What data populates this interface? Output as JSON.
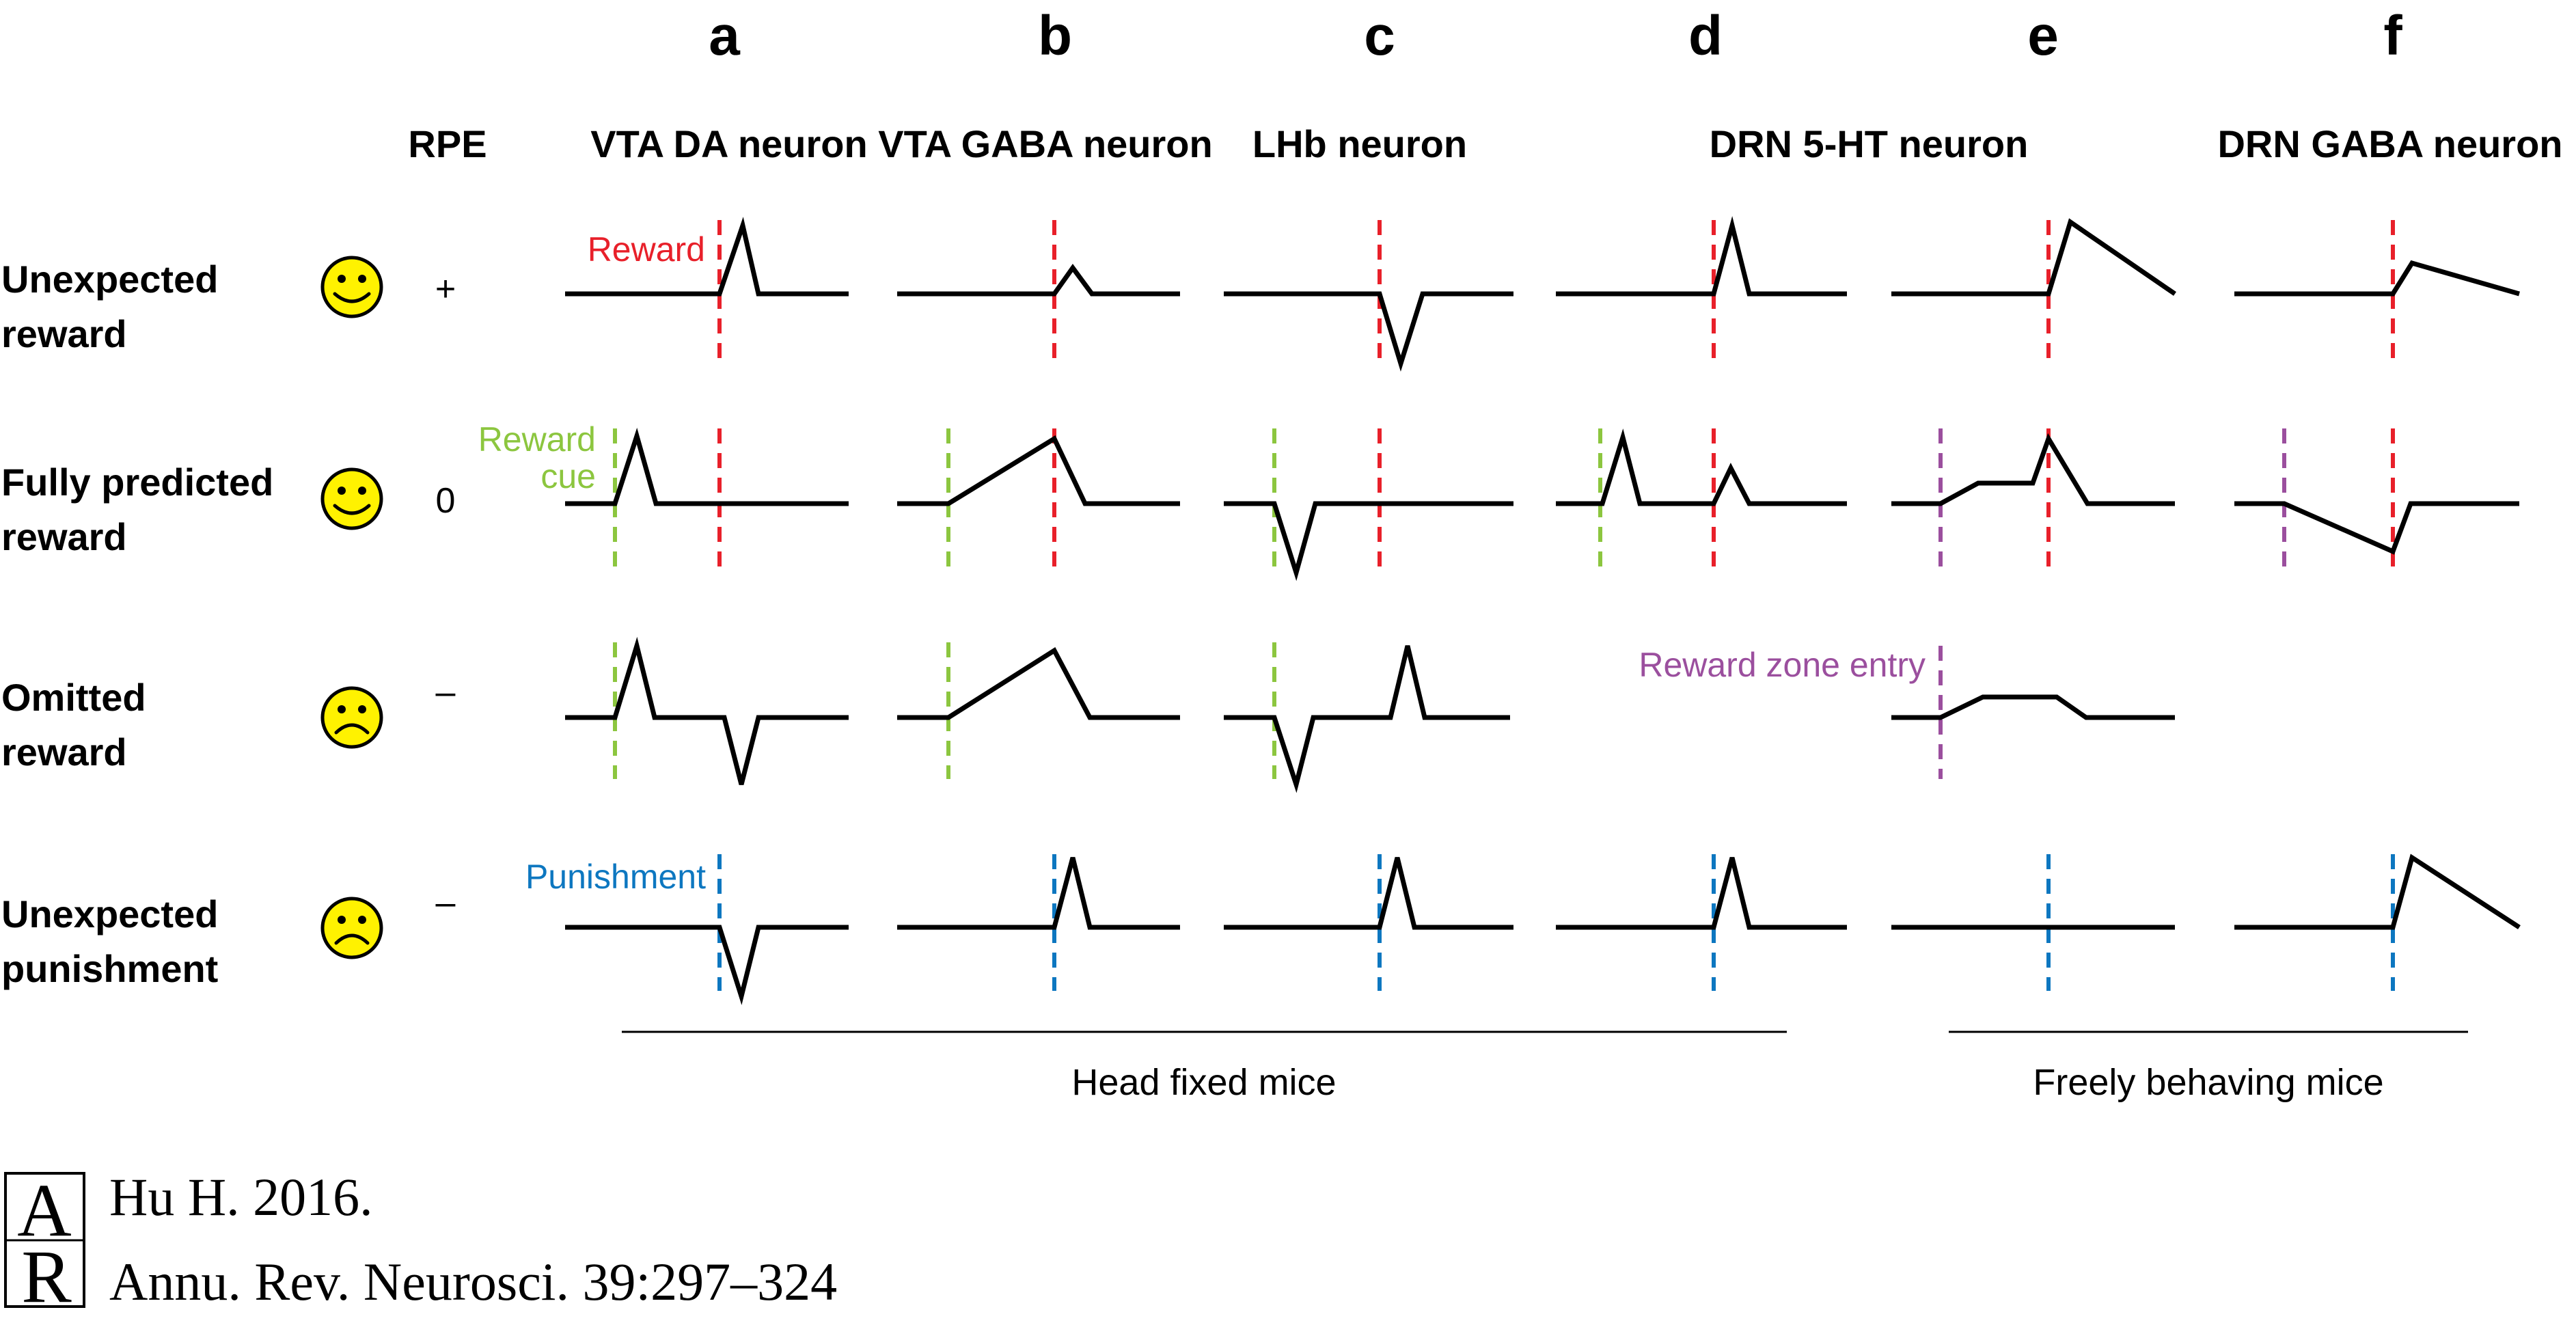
{
  "columns": [
    {
      "letter": "a",
      "title": "VTA DA neuron"
    },
    {
      "letter": "b",
      "title": "VTA GABA neuron"
    },
    {
      "letter": "c",
      "title": "LHb neuron"
    },
    {
      "letter": "d",
      "title": ""
    },
    {
      "letter": "e",
      "title": ""
    },
    {
      "letter": "f",
      "title": "DRN GABA neuron"
    }
  ],
  "de_title": "DRN 5-HT neuron",
  "rpe_header": "RPE",
  "rows": [
    {
      "line1": "Unexpected",
      "line2": "reward",
      "mood": "happy",
      "rpe": "+"
    },
    {
      "line1": "Fully predicted",
      "line2": "reward",
      "mood": "happy",
      "rpe": "0"
    },
    {
      "line1": "Omitted",
      "line2": "reward",
      "mood": "sad",
      "rpe": "–"
    },
    {
      "line1": "Unexpected",
      "line2": "punishment",
      "mood": "sad",
      "rpe": "–"
    }
  ],
  "annotations": {
    "reward": "Reward",
    "reward_cue_1": "Reward",
    "reward_cue_2": "cue",
    "reward_zone": "Reward zone entry",
    "punishment": "Punishment"
  },
  "groups": {
    "head_fixed": "Head fixed mice",
    "freely_behaving": "Freely behaving mice"
  },
  "citation": {
    "logo_letters": "AR",
    "line1": "Hu H. 2016.",
    "line2": "Annu. Rev. Neurosci. 39:297–324"
  },
  "colors": {
    "reward": "#e8202a",
    "cue": "#8cc63f",
    "zone": "#9b4f9e",
    "punishment": "#0d77c0",
    "face": "#fff200",
    "trace": "#000000"
  }
}
